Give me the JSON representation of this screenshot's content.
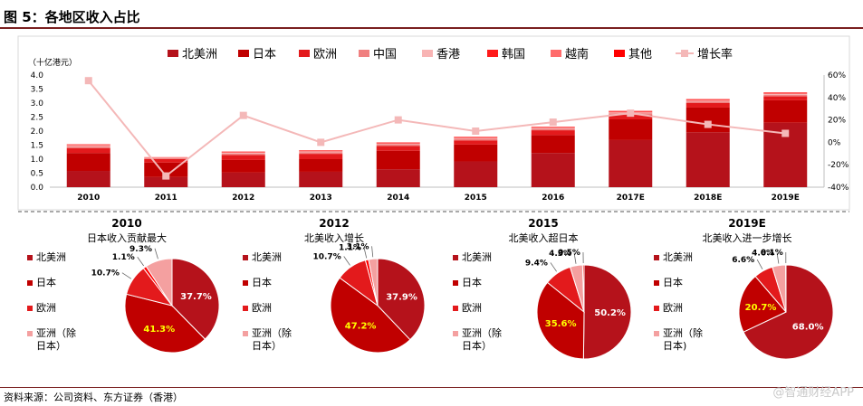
{
  "figure_title": "图 5：各地区收入占比",
  "source": "资料来源：公司资料、东方证券（香港）",
  "watermark": "@智通财经APP",
  "colors": {
    "north_america": "#b5121b",
    "japan": "#c00000",
    "europe": "#e31a1c",
    "china": "#f08080",
    "hongkong": "#f8b4b4",
    "korea": "#ff1a1a",
    "vietnam": "#ff6b6b",
    "other": "#ff0000",
    "growth": "#f4b8b8",
    "pie_asia": "#f4a0a0"
  },
  "chart_data": [
    {
      "type": "bar",
      "stacked": true,
      "ylabel": "（十亿港元）",
      "ylim": [
        0,
        4.0
      ],
      "yticks": [
        "0.0",
        "0.5",
        "1.0",
        "1.5",
        "2.0",
        "2.5",
        "3.0",
        "3.5",
        "4.0"
      ],
      "y2lim": [
        -40,
        60
      ],
      "y2ticks": [
        "-40%",
        "-20%",
        "0%",
        "20%",
        "40%",
        "60%"
      ],
      "categories": [
        "2010",
        "2011",
        "2012",
        "2013",
        "2014",
        "2015",
        "2016",
        "2017E",
        "2018E",
        "2019E"
      ],
      "legend": [
        "北美洲",
        "日本",
        "欧洲",
        "中国",
        "香港",
        "韩国",
        "越南",
        "其他",
        "增长率"
      ],
      "series": [
        {
          "name": "北美洲",
          "values": [
            0.58,
            0.36,
            0.52,
            0.55,
            0.64,
            0.92,
            1.22,
            1.68,
            1.96,
            2.3
          ]
        },
        {
          "name": "日本",
          "values": [
            0.64,
            0.52,
            0.45,
            0.45,
            0.66,
            0.6,
            0.64,
            0.74,
            0.88,
            0.8
          ]
        },
        {
          "name": "欧洲",
          "values": [
            0.17,
            0.12,
            0.18,
            0.19,
            0.17,
            0.15,
            0.17,
            0.16,
            0.16,
            0.14
          ]
        },
        {
          "name": "中国",
          "values": [
            0.07,
            0.03,
            0.05,
            0.06,
            0.06,
            0.06,
            0.06,
            0.06,
            0.06,
            0.06
          ]
        },
        {
          "name": "香港",
          "values": [
            0.03,
            0.02,
            0.03,
            0.03,
            0.03,
            0.03,
            0.03,
            0.03,
            0.03,
            0.03
          ]
        },
        {
          "name": "韩国",
          "values": [
            0.02,
            0.01,
            0.02,
            0.02,
            0.02,
            0.02,
            0.02,
            0.02,
            0.02,
            0.02
          ]
        },
        {
          "name": "越南",
          "values": [
            0.01,
            0.005,
            0.01,
            0.01,
            0.01,
            0.01,
            0.01,
            0.01,
            0.01,
            0.01
          ]
        },
        {
          "name": "其他",
          "values": [
            0.01,
            0.005,
            0.01,
            0.01,
            0.01,
            0.01,
            0.01,
            0.02,
            0.02,
            0.02
          ]
        }
      ],
      "line_series": {
        "name": "增长率",
        "values": [
          55,
          -30,
          24,
          0,
          20,
          10,
          18,
          26,
          16,
          8
        ]
      }
    },
    {
      "type": "pie",
      "title": "2010",
      "subtitle": "日本收入贡献最大",
      "legend": [
        "北美洲",
        "日本",
        "欧洲",
        "亚洲（除日本）"
      ],
      "slices": [
        {
          "label": "北美洲",
          "value": 37.7,
          "text": "37.7%"
        },
        {
          "label": "日本",
          "value": 41.3,
          "text": "41.3%"
        },
        {
          "label": "欧洲",
          "value": 10.7,
          "text": "10.7%"
        },
        {
          "label": "其他",
          "value": 1.1,
          "text": "1.1%"
        },
        {
          "label": "亚洲（除日本）",
          "value": 9.3,
          "text": "9.3%"
        }
      ]
    },
    {
      "type": "pie",
      "title": "2012",
      "subtitle": "北美收入增长",
      "legend": [
        "北美洲",
        "日本",
        "欧洲",
        "亚洲（除日本）"
      ],
      "slices": [
        {
          "label": "北美洲",
          "value": 37.9,
          "text": "37.9%"
        },
        {
          "label": "日本",
          "value": 47.2,
          "text": "47.2%"
        },
        {
          "label": "欧洲",
          "value": 10.7,
          "text": "10.7%"
        },
        {
          "label": "其他",
          "value": 1.1,
          "text": "1.1%"
        },
        {
          "label": "亚洲（除日本）",
          "value": 3.1,
          "text": "3.1%"
        }
      ]
    },
    {
      "type": "pie",
      "title": "2015",
      "subtitle": "北美收入超日本",
      "legend": [
        "北美洲",
        "日本",
        "欧洲",
        "亚洲（除日本）"
      ],
      "slices": [
        {
          "label": "北美洲",
          "value": 50.2,
          "text": "50.2%"
        },
        {
          "label": "日本",
          "value": 35.6,
          "text": "35.6%"
        },
        {
          "label": "欧洲",
          "value": 9.4,
          "text": "9.4%"
        },
        {
          "label": "亚洲（除日本）",
          "value": 4.3,
          "text": "4.3%"
        },
        {
          "label": "其他",
          "value": 0.5,
          "text": "0.5%"
        }
      ]
    },
    {
      "type": "pie",
      "title": "2019E",
      "subtitle": "北美收入进一步增长",
      "legend": [
        "北美洲",
        "日本",
        "欧洲",
        "亚洲（除日本)"
      ],
      "slices": [
        {
          "label": "北美洲",
          "value": 68.0,
          "text": "68.0%"
        },
        {
          "label": "日本",
          "value": 20.7,
          "text": "20.7%"
        },
        {
          "label": "欧洲",
          "value": 6.6,
          "text": "6.6%"
        },
        {
          "label": "亚洲（除日本）",
          "value": 4.6,
          "text": "4.6%"
        },
        {
          "label": "其他",
          "value": 0.1,
          "text": "0.1%"
        }
      ]
    }
  ]
}
